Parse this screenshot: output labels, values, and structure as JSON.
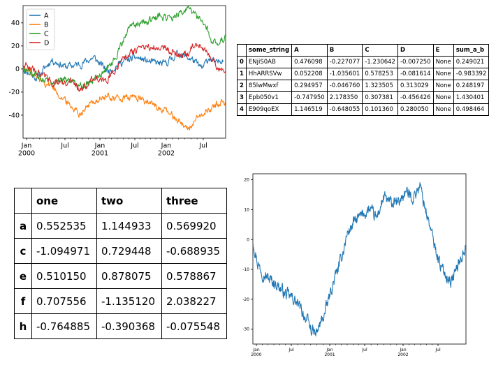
{
  "chart_data": [
    {
      "type": "line",
      "x_ticks": [
        "Jan\n2000",
        "Jul",
        "Jan\n2001",
        "Jul",
        "Jan\n2002",
        "Jul"
      ],
      "y_ticks": [
        -40,
        -20,
        0,
        20,
        40
      ],
      "ylim": [
        -60,
        55
      ],
      "grid": false,
      "legend": "top-left",
      "series": [
        {
          "name": "A",
          "color": "#1f77b4",
          "keypoints": [
            [
              0,
              0
            ],
            [
              60,
              -8
            ],
            [
              120,
              8
            ],
            [
              180,
              2
            ],
            [
              240,
              4
            ],
            [
              300,
              10
            ],
            [
              360,
              -2
            ],
            [
              420,
              6
            ],
            [
              480,
              10
            ],
            [
              540,
              6
            ],
            [
              600,
              4
            ],
            [
              660,
              14
            ],
            [
              720,
              8
            ],
            [
              760,
              0
            ],
            [
              790,
              10
            ],
            [
              820,
              4
            ],
            [
              850,
              10
            ]
          ]
        },
        {
          "name": "B",
          "color": "#ff7f0e",
          "keypoints": [
            [
              0,
              2
            ],
            [
              60,
              -8
            ],
            [
              120,
              -14
            ],
            [
              180,
              -28
            ],
            [
              240,
              -38
            ],
            [
              300,
              -28
            ],
            [
              360,
              -24
            ],
            [
              420,
              -26
            ],
            [
              480,
              -24
            ],
            [
              540,
              -30
            ],
            [
              600,
              -36
            ],
            [
              660,
              -44
            ],
            [
              700,
              -52
            ],
            [
              720,
              -48
            ],
            [
              760,
              -40
            ],
            [
              800,
              -34
            ],
            [
              840,
              -28
            ],
            [
              860,
              -30
            ]
          ]
        },
        {
          "name": "C",
          "color": "#2ca02c",
          "keypoints": [
            [
              0,
              0
            ],
            [
              60,
              -6
            ],
            [
              120,
              -10
            ],
            [
              180,
              -8
            ],
            [
              240,
              -14
            ],
            [
              300,
              -10
            ],
            [
              340,
              -4
            ],
            [
              380,
              6
            ],
            [
              420,
              22
            ],
            [
              460,
              38
            ],
            [
              520,
              40
            ],
            [
              580,
              46
            ],
            [
              620,
              44
            ],
            [
              660,
              48
            ],
            [
              700,
              52
            ],
            [
              740,
              44
            ],
            [
              780,
              36
            ],
            [
              800,
              24
            ],
            [
              830,
              22
            ],
            [
              860,
              28
            ]
          ]
        },
        {
          "name": "D",
          "color": "#d62728",
          "keypoints": [
            [
              0,
              4
            ],
            [
              60,
              -2
            ],
            [
              120,
              -10
            ],
            [
              160,
              -14
            ],
            [
              200,
              -10
            ],
            [
              240,
              -18
            ],
            [
              280,
              -12
            ],
            [
              300,
              -6
            ],
            [
              340,
              -12
            ],
            [
              380,
              -4
            ],
            [
              420,
              10
            ],
            [
              460,
              14
            ],
            [
              520,
              18
            ],
            [
              580,
              20
            ],
            [
              620,
              16
            ],
            [
              660,
              12
            ],
            [
              700,
              14
            ],
            [
              730,
              24
            ],
            [
              760,
              18
            ],
            [
              800,
              10
            ],
            [
              830,
              0
            ],
            [
              860,
              -4
            ]
          ]
        }
      ]
    },
    {
      "type": "line",
      "x_ticks": [
        "Jan\n2000",
        "Jul",
        "Jan\n2001",
        "Jul",
        "Jan\n2002",
        "Jul"
      ],
      "y_ticks": [
        20,
        10,
        0,
        -10,
        -20,
        -30
      ],
      "ylim": [
        -35,
        22
      ],
      "grid": false,
      "series": [
        {
          "name": "",
          "color": "#1f77b4",
          "keypoints": [
            [
              0,
              0
            ],
            [
              20,
              -8
            ],
            [
              50,
              -12
            ],
            [
              80,
              -14
            ],
            [
              100,
              -15
            ],
            [
              130,
              -18
            ],
            [
              170,
              -20
            ],
            [
              210,
              -25
            ],
            [
              240,
              -30
            ],
            [
              260,
              -32
            ],
            [
              280,
              -28
            ],
            [
              300,
              -24
            ],
            [
              330,
              -15
            ],
            [
              360,
              -8
            ],
            [
              390,
              2
            ],
            [
              420,
              6
            ],
            [
              450,
              8
            ],
            [
              480,
              10
            ],
            [
              510,
              7
            ],
            [
              540,
              14
            ],
            [
              570,
              12
            ],
            [
              600,
              12
            ],
            [
              630,
              16
            ],
            [
              660,
              14
            ],
            [
              690,
              18
            ],
            [
              720,
              8
            ],
            [
              750,
              -2
            ],
            [
              780,
              -10
            ],
            [
              800,
              -12
            ],
            [
              820,
              -14
            ],
            [
              840,
              -10
            ],
            [
              860,
              -6
            ],
            [
              880,
              -2
            ]
          ]
        }
      ]
    }
  ],
  "table1": {
    "columns": [
      "",
      "some_string",
      "A",
      "B",
      "C",
      "D",
      "E",
      "sum_a_b"
    ],
    "rows": [
      [
        "0",
        "ENjiS0AB",
        "0.476098",
        "-0.227077",
        "-1.230642",
        "-0.007250",
        "None",
        "0.249021"
      ],
      [
        "1",
        "HhARRSVw",
        "0.052208",
        "-1.035601",
        "0.578253",
        "-0.081614",
        "None",
        "-0.983392"
      ],
      [
        "2",
        "85lwMwxf",
        "0.294957",
        "-0.046760",
        "1.323505",
        "0.313029",
        "None",
        "0.248197"
      ],
      [
        "3",
        "Epb050v1",
        "-0.747950",
        "2.178350",
        "0.307381",
        "-0.456426",
        "None",
        "1.430401"
      ],
      [
        "4",
        "E909qoEX",
        "1.146519",
        "-0.648055",
        "0.101360",
        "0.280050",
        "None",
        "0.498464"
      ]
    ]
  },
  "table2": {
    "columns": [
      "",
      "one",
      "two",
      "three"
    ],
    "rows": [
      [
        "a",
        "0.552535",
        "1.144933",
        "0.569920"
      ],
      [
        "c",
        "-1.094971",
        "0.729448",
        "-0.688935"
      ],
      [
        "e",
        "0.510150",
        "0.878075",
        "0.578867"
      ],
      [
        "f",
        "0.707556",
        "-1.135120",
        "2.038227"
      ],
      [
        "h",
        "-0.764885",
        "-0.390368",
        "-0.075548"
      ]
    ]
  }
}
